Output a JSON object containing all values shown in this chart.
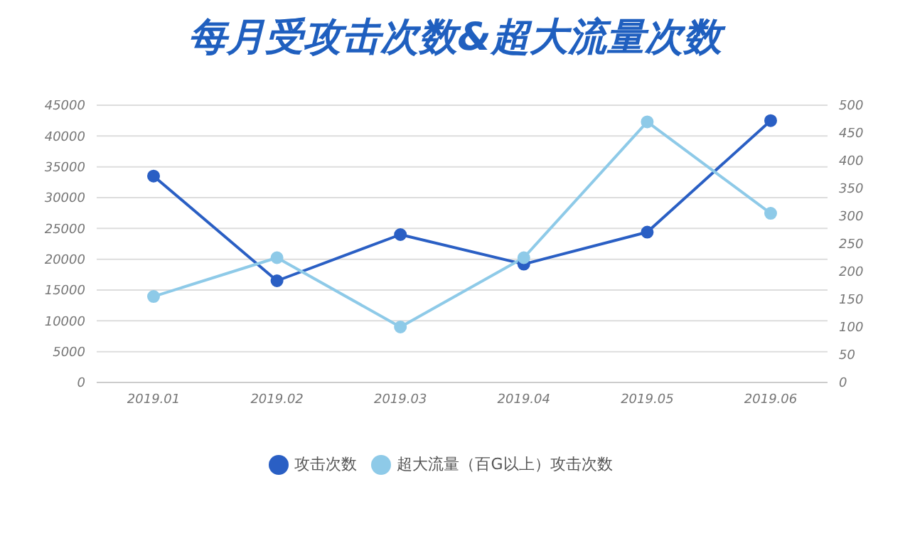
{
  "chart_data": {
    "type": "line",
    "title": "每月受攻击次数&超大流量次数",
    "categories": [
      "2019.01",
      "2019.02",
      "2019.03",
      "2019.04",
      "2019.05",
      "2019.06"
    ],
    "series": [
      {
        "name": "攻击次数",
        "color": "#2a5fc4",
        "values": [
          33500,
          16500,
          24000,
          19200,
          24400,
          42500
        ]
      },
      {
        "name": "超大流量（百G以上）攻击次数",
        "color": "#8ecae8",
        "axis": "y2",
        "values": [
          155,
          225,
          100,
          225,
          470,
          305
        ]
      }
    ],
    "ylim": [
      0,
      45000
    ],
    "yticks": [
      0,
      5000,
      10000,
      15000,
      20000,
      25000,
      30000,
      35000,
      40000,
      45000
    ],
    "y2lim": [
      0,
      500
    ],
    "y2ticks": [
      0,
      50,
      100,
      150,
      200,
      250,
      300,
      350,
      400,
      450,
      500
    ],
    "grid": "y",
    "legend": "bottom",
    "marker": "circle",
    "line_style": "solid"
  }
}
